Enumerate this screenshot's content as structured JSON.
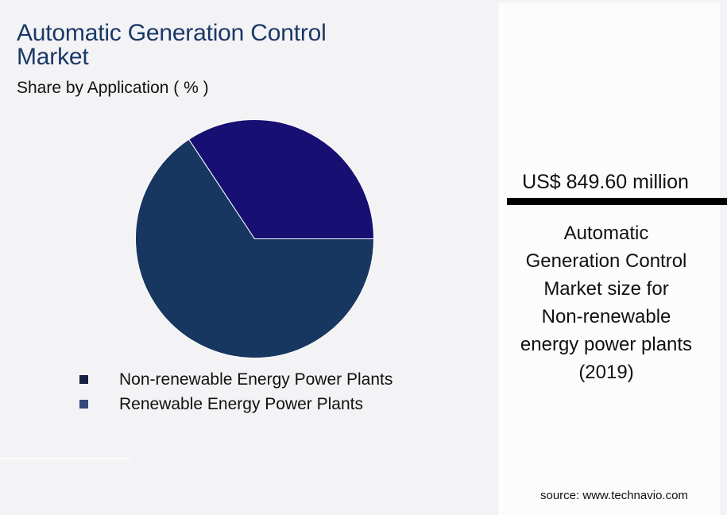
{
  "header": {
    "title_line1": "Automatic Generation Control",
    "title_line2": "Market",
    "subtitle": "Share by Application ( % )"
  },
  "legend": [
    {
      "label": "Non-renewable Energy Power Plants",
      "color": "#162040"
    },
    {
      "label": "Renewable Energy Power Plants",
      "color": "#34497a"
    }
  ],
  "highlight": {
    "value": "US$ 849.60 million",
    "description": [
      "Automatic",
      "Generation Control",
      "Market size for",
      "Non-renewable",
      "energy power plants",
      "(2019)"
    ]
  },
  "source": "source: www.technavio.com",
  "colors": {
    "title": "#1a3866",
    "slice_nonrenewable": "#173760",
    "slice_renewable": "#170f72"
  },
  "chart_data": {
    "type": "pie",
    "title": "Automatic Generation Control Market - Share by Application ( % )",
    "categories": [
      "Non-renewable Energy Power Plants",
      "Renewable Energy Power Plants"
    ],
    "values": [
      65.7,
      34.3
    ],
    "colors": [
      "#173760",
      "#170f72"
    ],
    "legend_position": "bottom",
    "annotation": "US$ 849.60 million - Automatic Generation Control Market size for Non-renewable energy power plants (2019)"
  }
}
